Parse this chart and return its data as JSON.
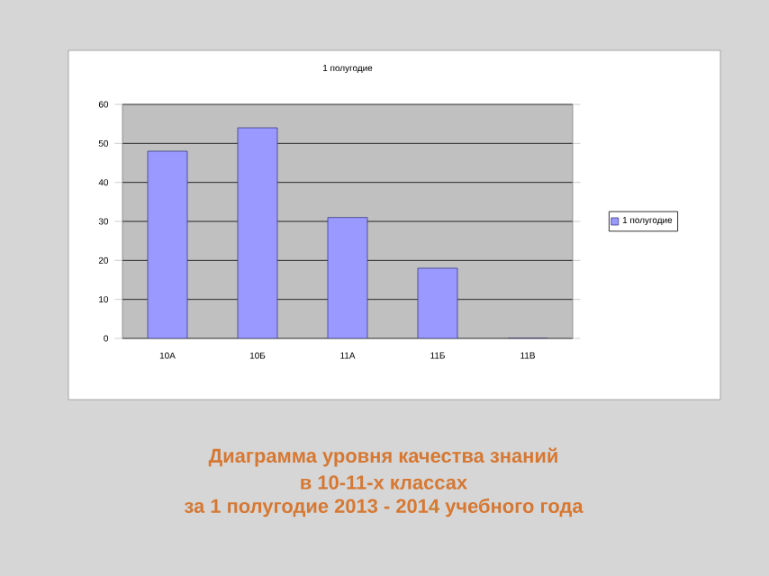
{
  "chart_data": {
    "type": "bar",
    "title": "1 полугодие",
    "categories": [
      "10А",
      "10Б",
      "11А",
      "11Б",
      "11В"
    ],
    "series": [
      {
        "name": "1 полугодие",
        "color": "#9999ff",
        "values": [
          48,
          54,
          31,
          18,
          0
        ]
      }
    ],
    "ylim": [
      0,
      60
    ],
    "yticks": [
      0,
      10,
      20,
      30,
      40,
      50,
      60
    ],
    "grid": "y",
    "legend": "right",
    "annotations": [
      "Диаграмма уровня качества знаний",
      "в 10-11-х классах",
      "за 1 полугодие 2013 - 2014 учебного года"
    ]
  }
}
